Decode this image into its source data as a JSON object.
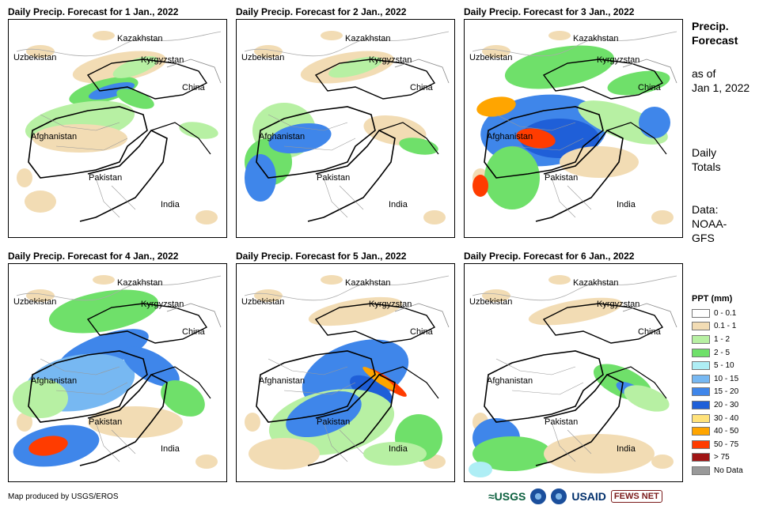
{
  "panels": [
    {
      "title": "Daily Precip. Forecast for 1 Jan., 2022",
      "day": 1
    },
    {
      "title": "Daily Precip. Forecast for 2 Jan., 2022",
      "day": 2
    },
    {
      "title": "Daily Precip. Forecast for 3 Jan., 2022",
      "day": 3
    },
    {
      "title": "Daily Precip. Forecast for 4 Jan., 2022",
      "day": 4
    },
    {
      "title": "Daily Precip. Forecast for 5 Jan., 2022",
      "day": 5
    },
    {
      "title": "Daily Precip. Forecast for 6 Jan., 2022",
      "day": 6
    }
  ],
  "country_labels": {
    "kazakhstan": "Kazakhstan",
    "uzbekistan": "Uzbekistan",
    "kyrgyzstan": "Kyrgyzstan",
    "china": "China",
    "afghanistan": "Afghanistan",
    "pakistan": "Pakistan",
    "india": "India"
  },
  "side": {
    "title_line1": "Precip.",
    "title_line2": "Forecast",
    "asof_line1": "as of",
    "asof_line2": "Jan 1, 2022",
    "daily_line1": "Daily",
    "daily_line2": "Totals",
    "data_line1": "Data:",
    "data_line2": "NOAA-",
    "data_line3": "GFS"
  },
  "legend": {
    "title": "PPT (mm)",
    "items": [
      {
        "label": "0 - 0.1",
        "color": "#ffffff"
      },
      {
        "label": "0.1 - 1",
        "color": "#f2dcb4"
      },
      {
        "label": "1 - 2",
        "color": "#b7f0a3"
      },
      {
        "label": "2 - 5",
        "color": "#6fe06a"
      },
      {
        "label": "5 - 10",
        "color": "#aeeef5"
      },
      {
        "label": "10 - 15",
        "color": "#77b8f2"
      },
      {
        "label": "15 - 20",
        "color": "#3f86ea"
      },
      {
        "label": "20 - 30",
        "color": "#1f5fd8"
      },
      {
        "label": "30 - 40",
        "color": "#ffe27a"
      },
      {
        "label": "40 - 50",
        "color": "#ffa500"
      },
      {
        "label": "50 - 75",
        "color": "#ff3c00"
      },
      {
        "label": "> 75",
        "color": "#a01515"
      },
      {
        "label": "No Data",
        "color": "#999999"
      }
    ]
  },
  "footer": {
    "credit": "Map produced by USGS/EROS",
    "logo_usgs": "≈USGS",
    "logo_usaid": "USAID",
    "logo_fews": "FEWS NET"
  }
}
